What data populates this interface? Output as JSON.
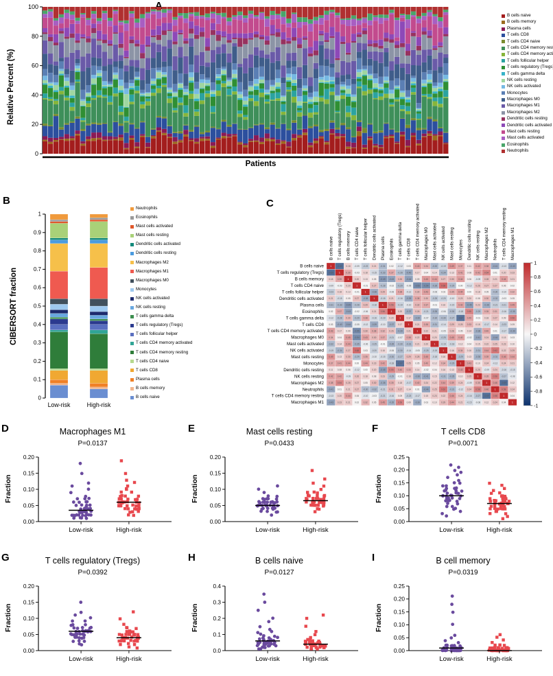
{
  "panel_labels": {
    "a": "A",
    "b": "B",
    "c": "C",
    "d": "D",
    "e": "E",
    "f": "F",
    "g": "G",
    "h": "H",
    "i": "I"
  },
  "colors": {
    "low_risk": "#6a4a9e",
    "high_risk": "#e8484e",
    "axis": "#000000"
  },
  "chart_data": [
    {
      "id": "A",
      "type": "bar",
      "stacked": true,
      "normalized_percent": true,
      "title": "",
      "xlabel": "Patients",
      "ylabel": "Relative Percent (%)",
      "yticks": [
        0,
        20,
        40,
        60,
        80,
        100
      ],
      "ylim": [
        0,
        100
      ],
      "n_patients": 75,
      "seed": 11,
      "cell_types": [
        {
          "name": "B cells naive",
          "color": "#a31d1d",
          "mean": 0.08
        },
        {
          "name": "B cells memory",
          "color": "#9c6b1e",
          "mean": 0.01
        },
        {
          "name": "Plasma cells",
          "color": "#8a1a56",
          "mean": 0.02
        },
        {
          "name": "T cells CD8",
          "color": "#2c4f9e",
          "mean": 0.06
        },
        {
          "name": "T cells CD4 naive",
          "color": "#7a8c2f",
          "mean": 0.01
        },
        {
          "name": "T cells CD4 memory resting",
          "color": "#3e8f5a",
          "mean": 0.15
        },
        {
          "name": "T cells CD4 memory activated",
          "color": "#86b53a",
          "mean": 0.02
        },
        {
          "name": "T cells follicular helper",
          "color": "#2ba3a0",
          "mean": 0.03
        },
        {
          "name": "T cells regulatory (Tregs)",
          "color": "#2f8f33",
          "mean": 0.05
        },
        {
          "name": "T cells gamma delta",
          "color": "#37b3c9",
          "mean": 0.01
        },
        {
          "name": "NK cells resting",
          "color": "#9fd6a0",
          "mean": 0.02
        },
        {
          "name": "NK cells activated",
          "color": "#76b9e3",
          "mean": 0.02
        },
        {
          "name": "Monocytes",
          "color": "#5b7fb4",
          "mean": 0.05
        },
        {
          "name": "Macrophages M0",
          "color": "#3f5d8a",
          "mean": 0.08
        },
        {
          "name": "Macrophages M1",
          "color": "#6a5aa8",
          "mean": 0.07
        },
        {
          "name": "Macrophages M2",
          "color": "#8c94a6",
          "mean": 0.08
        },
        {
          "name": "Dendritic cells resting",
          "color": "#97325f",
          "mean": 0.02
        },
        {
          "name": "Dendritic cells activated",
          "color": "#8d49b8",
          "mean": 0.04
        },
        {
          "name": "Mast cells resting",
          "color": "#c24b8e",
          "mean": 0.08
        },
        {
          "name": "Mast cells activated",
          "color": "#a85ec2",
          "mean": 0.03
        },
        {
          "name": "Eosinophils",
          "color": "#49a56a",
          "mean": 0.02
        },
        {
          "name": "Neutrophils",
          "color": "#b03030",
          "mean": 0.05
        }
      ]
    },
    {
      "id": "B",
      "type": "bar",
      "stacked": true,
      "ylabel": "CIBERSORT fraction",
      "yticks": [
        "0",
        "0.1",
        "0.2",
        "0.3",
        "0.4",
        "0.5",
        "0.6",
        "0.7",
        "0.8",
        "0.9",
        "1"
      ],
      "ylim": [
        0,
        1
      ],
      "categories": [
        "Low-risk",
        "High-risk"
      ],
      "cell_types": [
        {
          "name": "B cells naive",
          "color": "#6a8ed1",
          "low": 0.07,
          "high": 0.05
        },
        {
          "name": "B cells memory",
          "color": "#f2b58c",
          "low": 0.01,
          "high": 0.01
        },
        {
          "name": "Plasma cells",
          "color": "#f08026",
          "low": 0.02,
          "high": 0.02
        },
        {
          "name": "T cells CD8",
          "color": "#f0a832",
          "low": 0.05,
          "high": 0.07
        },
        {
          "name": "T cells CD4 naive",
          "color": "#b6d98e",
          "low": 0.01,
          "high": 0.01
        },
        {
          "name": "T cells CD4 memory resting",
          "color": "#2f7d3a",
          "low": 0.2,
          "high": 0.19
        },
        {
          "name": "T cells CD4 memory activated",
          "color": "#31a596",
          "low": 0.01,
          "high": 0.02
        },
        {
          "name": "T cells follicular helper",
          "color": "#5a6fc0",
          "low": 0.03,
          "high": 0.03
        },
        {
          "name": "T cells regulatory (Tregs)",
          "color": "#2b3a8f",
          "low": 0.03,
          "high": 0.02
        },
        {
          "name": "T cells gamma delta",
          "color": "#3d8f4f",
          "low": 0.01,
          "high": 0.01
        },
        {
          "name": "NK cells resting",
          "color": "#69a8e0",
          "low": 0.02,
          "high": 0.02
        },
        {
          "name": "NK cells activated",
          "color": "#1d2b6e",
          "low": 0.02,
          "high": 0.02
        },
        {
          "name": "Monocytes",
          "color": "#9ec9ef",
          "low": 0.03,
          "high": 0.03
        },
        {
          "name": "Macrophages M0",
          "color": "#41505c",
          "low": 0.03,
          "high": 0.04
        },
        {
          "name": "Macrophages M1",
          "color": "#ef5a50",
          "low": 0.15,
          "high": 0.17
        },
        {
          "name": "Macrophages M2",
          "color": "#f6c04a",
          "low": 0.15,
          "high": 0.13
        },
        {
          "name": "Dendritic cells resting",
          "color": "#4a9bdf",
          "low": 0.02,
          "high": 0.02
        },
        {
          "name": "Dendritic cells activated",
          "color": "#12897b",
          "low": 0.01,
          "high": 0.01
        },
        {
          "name": "Mast cells resting",
          "color": "#a9d178",
          "low": 0.08,
          "high": 0.09
        },
        {
          "name": "Mast cells activated",
          "color": "#e0572a",
          "low": 0.01,
          "high": 0.01
        },
        {
          "name": "Eosinophils",
          "color": "#9a9a9a",
          "low": 0.01,
          "high": 0.01
        },
        {
          "name": "Neutrophils",
          "color": "#f09a3c",
          "low": 0.03,
          "high": 0.02
        }
      ]
    },
    {
      "id": "C",
      "type": "heatmap",
      "seed": 7,
      "colorbar_ticks": [
        "1",
        "0.8",
        "0.6",
        "0.4",
        "0.2",
        "0",
        "-0.2",
        "-0.4",
        "-0.6",
        "-0.8",
        "-1"
      ],
      "colorbar_range": [
        -1,
        1
      ],
      "labels": [
        "B cells naive",
        "T cells regulatory (Tregs)",
        "B cells memory",
        "T cells CD4 naive",
        "T cells follicular helper",
        "Dendritic cells activated",
        "Plasma cells",
        "Eosinophils",
        "T cells gamma delta",
        "T cells CD8",
        "T cells CD4 memory activated",
        "Macrophages M0",
        "Mast cells activated",
        "NK cells activated",
        "Mast cells resting",
        "Monocytes",
        "Dendritic cells resting",
        "NK cells resting",
        "Macrophages M2",
        "Neutrophils",
        "T cells CD4 memory resting",
        "Macrophages M1"
      ]
    },
    {
      "id": "D",
      "type": "scatter",
      "seed": 3,
      "title": "Macrophages M1",
      "p_label": "P=0.0137",
      "ylabel": "Fraction",
      "groups": [
        "Low-risk",
        "High-risk"
      ],
      "ylim": [
        0,
        0.2
      ],
      "yticks": [
        "0.00",
        "0.05",
        "0.10",
        "0.15",
        "0.20"
      ],
      "low": [
        0.02,
        0.03,
        0.01,
        0.04,
        0.05,
        0.02,
        0.03,
        0.06,
        0.07,
        0.02,
        0.01,
        0.03,
        0.04,
        0.05,
        0.03,
        0.02,
        0.08,
        0.09,
        0.1,
        0.04,
        0.03,
        0.02,
        0.05,
        0.06,
        0.03,
        0.02,
        0.04,
        0.07,
        0.01,
        0.02,
        0.03,
        0.05,
        0.11,
        0.12,
        0.15,
        0.18,
        0.02,
        0.03,
        0.04,
        0.06,
        0.02,
        0.01,
        0.05,
        0.03,
        0.02,
        0.07,
        0.04,
        0.03,
        0.02,
        0.06
      ],
      "high": [
        0.03,
        0.04,
        0.05,
        0.06,
        0.07,
        0.05,
        0.04,
        0.06,
        0.08,
        0.09,
        0.05,
        0.06,
        0.07,
        0.03,
        0.02,
        0.05,
        0.08,
        0.1,
        0.11,
        0.06,
        0.05,
        0.04,
        0.07,
        0.06,
        0.05,
        0.09,
        0.12,
        0.13,
        0.15,
        0.19,
        0.05,
        0.06,
        0.04,
        0.03,
        0.07,
        0.08,
        0.06,
        0.05,
        0.1,
        0.04,
        0.06,
        0.07,
        0.05,
        0.08,
        0.02,
        0.06
      ]
    },
    {
      "id": "E",
      "type": "scatter",
      "seed": 4,
      "title": "Mast cells resting",
      "p_label": "P=0.0433",
      "ylabel": "Fraction",
      "groups": [
        "Low-risk",
        "High-risk"
      ],
      "ylim": [
        0,
        0.2
      ],
      "yticks": [
        "0.00",
        "0.05",
        "0.10",
        "0.15",
        "0.20"
      ],
      "low": [
        0.03,
        0.04,
        0.05,
        0.06,
        0.05,
        0.04,
        0.06,
        0.07,
        0.05,
        0.04,
        0.03,
        0.06,
        0.07,
        0.08,
        0.05,
        0.06,
        0.04,
        0.05,
        0.09,
        0.1,
        0.06,
        0.05,
        0.04,
        0.07,
        0.06,
        0.05,
        0.08,
        0.03,
        0.02,
        0.05,
        0.06,
        0.07,
        0.05,
        0.04,
        0.06,
        0.05,
        0.11,
        0.04,
        0.05,
        0.06,
        0.03,
        0.05,
        0.07,
        0.06,
        0.05
      ],
      "high": [
        0.04,
        0.05,
        0.06,
        0.07,
        0.06,
        0.05,
        0.07,
        0.08,
        0.09,
        0.06,
        0.05,
        0.07,
        0.08,
        0.1,
        0.11,
        0.06,
        0.07,
        0.05,
        0.06,
        0.12,
        0.13,
        0.16,
        0.07,
        0.06,
        0.05,
        0.08,
        0.09,
        0.06,
        0.07,
        0.05,
        0.04,
        0.06,
        0.08,
        0.07,
        0.06,
        0.09,
        0.05,
        0.06,
        0.07,
        0.03,
        0.06,
        0.08,
        0.05,
        0.07
      ]
    },
    {
      "id": "F",
      "type": "scatter",
      "seed": 5,
      "title": "T cells CD8",
      "p_label": "P=0.0071",
      "ylabel": "Fraction",
      "groups": [
        "Low-risk",
        "High-risk"
      ],
      "ylim": [
        0,
        0.25
      ],
      "yticks": [
        "0.00",
        "0.05",
        "0.10",
        "0.15",
        "0.20",
        "0.25"
      ],
      "low": [
        0.05,
        0.08,
        0.1,
        0.12,
        0.15,
        0.18,
        0.2,
        0.22,
        0.09,
        0.11,
        0.13,
        0.07,
        0.06,
        0.1,
        0.14,
        0.16,
        0.08,
        0.09,
        0.12,
        0.11,
        0.1,
        0.13,
        0.15,
        0.17,
        0.05,
        0.04,
        0.09,
        0.1,
        0.11,
        0.12,
        0.08,
        0.07,
        0.14,
        0.13,
        0.02,
        0.03,
        0.1,
        0.09,
        0.21,
        0.19,
        0.06,
        0.11,
        0.12,
        0.08,
        0.1
      ],
      "high": [
        0.03,
        0.05,
        0.07,
        0.08,
        0.06,
        0.09,
        0.1,
        0.04,
        0.05,
        0.07,
        0.08,
        0.09,
        0.11,
        0.12,
        0.06,
        0.05,
        0.07,
        0.08,
        0.1,
        0.13,
        0.14,
        0.15,
        0.04,
        0.06,
        0.07,
        0.05,
        0.08,
        0.09,
        0.02,
        0.03,
        0.06,
        0.07,
        0.08,
        0.05,
        0.06,
        0.1,
        0.09,
        0.07,
        0.01,
        0.05,
        0.08,
        0.06,
        0.11,
        0.07
      ]
    },
    {
      "id": "G",
      "type": "scatter",
      "seed": 6,
      "title": "T cells regulatory (Tregs)",
      "p_label": "P=0.0392",
      "ylabel": "Fraction",
      "groups": [
        "Low-risk",
        "High-risk"
      ],
      "ylim": [
        0,
        0.2
      ],
      "yticks": [
        "0.00",
        "0.05",
        "0.10",
        "0.15",
        "0.20"
      ],
      "low": [
        0.02,
        0.03,
        0.04,
        0.05,
        0.06,
        0.07,
        0.08,
        0.05,
        0.04,
        0.06,
        0.07,
        0.05,
        0.06,
        0.09,
        0.1,
        0.11,
        0.05,
        0.04,
        0.03,
        0.06,
        0.07,
        0.08,
        0.05,
        0.06,
        0.04,
        0.05,
        0.07,
        0.06,
        0.05,
        0.08,
        0.09,
        0.12,
        0.15,
        0.05,
        0.06,
        0.04,
        0.03,
        0.05,
        0.06,
        0.07,
        0.02,
        0.05,
        0.06,
        0.08,
        0.05
      ],
      "high": [
        0.01,
        0.02,
        0.03,
        0.04,
        0.05,
        0.04,
        0.03,
        0.05,
        0.06,
        0.04,
        0.03,
        0.05,
        0.06,
        0.07,
        0.04,
        0.03,
        0.02,
        0.05,
        0.06,
        0.04,
        0.05,
        0.03,
        0.04,
        0.06,
        0.07,
        0.08,
        0.1,
        0.12,
        0.04,
        0.03,
        0.05,
        0.04,
        0.06,
        0.05,
        0.03,
        0.02,
        0.04,
        0.05,
        0.07,
        0.04,
        0.01,
        0.03,
        0.05,
        0.04
      ]
    },
    {
      "id": "H",
      "type": "scatter",
      "seed": 8,
      "title": "B cells naive",
      "p_label": "P=0.0127",
      "ylabel": "Fraction",
      "groups": [
        "Low-risk",
        "High-risk"
      ],
      "ylim": [
        0,
        0.4
      ],
      "yticks": [
        "0.0",
        "0.1",
        "0.2",
        "0.3",
        "0.4"
      ],
      "low": [
        0.01,
        0.02,
        0.03,
        0.04,
        0.05,
        0.06,
        0.08,
        0.1,
        0.12,
        0.15,
        0.18,
        0.2,
        0.25,
        0.3,
        0.35,
        0.05,
        0.04,
        0.03,
        0.06,
        0.07,
        0.08,
        0.09,
        0.05,
        0.04,
        0.06,
        0.02,
        0.01,
        0.03,
        0.05,
        0.07,
        0.09,
        0.11,
        0.13,
        0.04,
        0.05,
        0.06,
        0.03,
        0.02,
        0.08,
        0.05,
        0.04,
        0.07,
        0.06,
        0.05,
        0.03
      ],
      "high": [
        0.01,
        0.02,
        0.03,
        0.04,
        0.05,
        0.03,
        0.02,
        0.04,
        0.05,
        0.06,
        0.07,
        0.08,
        0.03,
        0.02,
        0.05,
        0.04,
        0.06,
        0.1,
        0.12,
        0.15,
        0.2,
        0.22,
        0.03,
        0.04,
        0.05,
        0.02,
        0.01,
        0.03,
        0.06,
        0.05,
        0.04,
        0.07,
        0.03,
        0.02,
        0.05,
        0.04,
        0.03,
        0.06,
        0.01,
        0.02,
        0.04,
        0.03,
        0.05,
        0.04
      ]
    },
    {
      "id": "I",
      "type": "scatter",
      "seed": 9,
      "title": "B cell memory",
      "p_label": "P=0.0319",
      "ylabel": "Fraction",
      "groups": [
        "Low-risk",
        "High-risk"
      ],
      "ylim": [
        0,
        0.25
      ],
      "yticks": [
        "0.00",
        "0.05",
        "0.10",
        "0.15",
        "0.20",
        "0.25"
      ],
      "low": [
        0.0,
        0.0,
        0.0,
        0.0,
        0.01,
        0.01,
        0.01,
        0.02,
        0.02,
        0.0,
        0.0,
        0.01,
        0.01,
        0.0,
        0.0,
        0.02,
        0.03,
        0.04,
        0.05,
        0.06,
        0.1,
        0.15,
        0.18,
        0.21,
        0.0,
        0.0,
        0.01,
        0.0,
        0.0,
        0.01,
        0.02,
        0.0,
        0.0,
        0.01,
        0.0,
        0.02,
        0.01,
        0.0,
        0.0,
        0.01,
        0.0,
        0.0,
        0.01,
        0.02,
        0.0
      ],
      "high": [
        0.0,
        0.0,
        0.0,
        0.0,
        0.0,
        0.01,
        0.01,
        0.0,
        0.0,
        0.01,
        0.02,
        0.03,
        0.04,
        0.05,
        0.06,
        0.0,
        0.0,
        0.01,
        0.0,
        0.0,
        0.01,
        0.02,
        0.0,
        0.0,
        0.01,
        0.0,
        0.0,
        0.0,
        0.01,
        0.0,
        0.02,
        0.01,
        0.0,
        0.0,
        0.01,
        0.0,
        0.0,
        0.01,
        0.0,
        0.0,
        0.02,
        0.0,
        0.01,
        0.0
      ]
    }
  ]
}
